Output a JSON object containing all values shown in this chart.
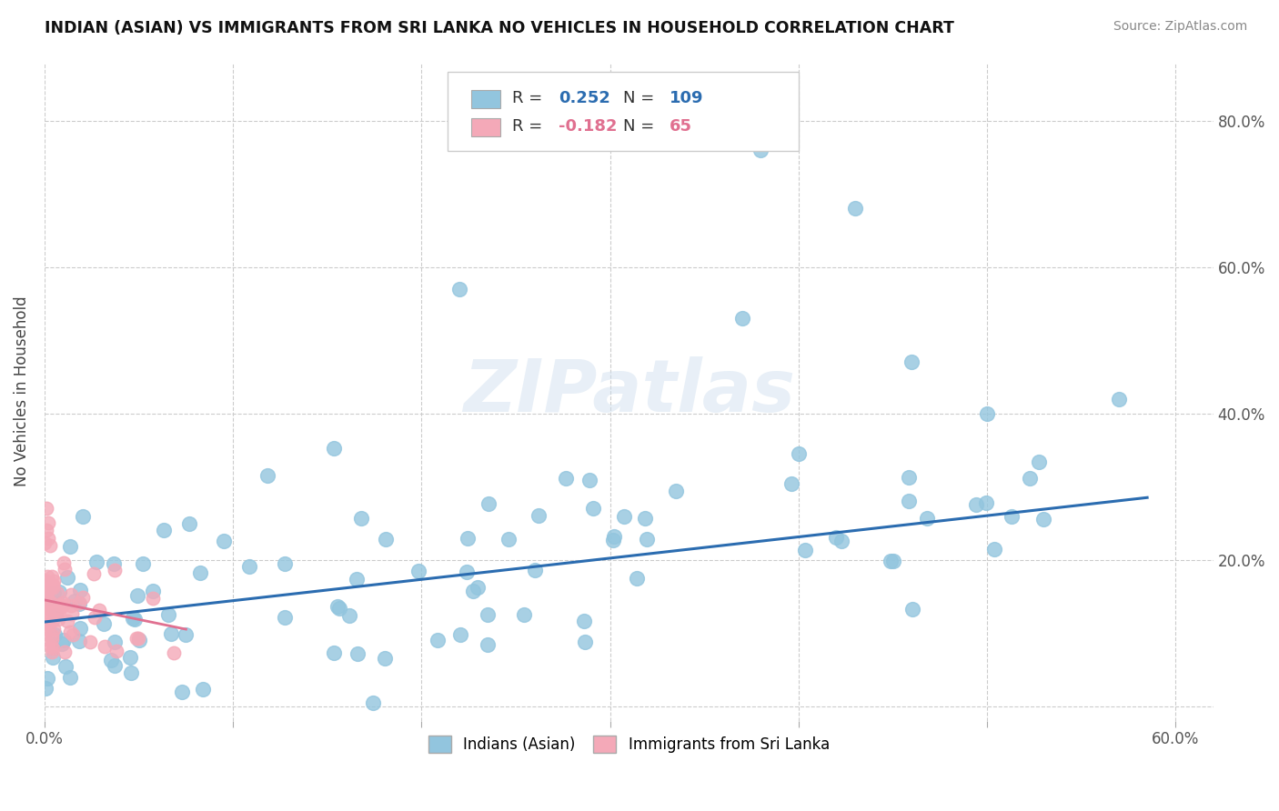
{
  "title": "INDIAN (ASIAN) VS IMMIGRANTS FROM SRI LANKA NO VEHICLES IN HOUSEHOLD CORRELATION CHART",
  "source": "Source: ZipAtlas.com",
  "ylabel": "No Vehicles in Household",
  "xlim": [
    0.0,
    0.62
  ],
  "ylim": [
    -0.02,
    0.88
  ],
  "xticks": [
    0.0,
    0.1,
    0.2,
    0.3,
    0.4,
    0.5,
    0.6
  ],
  "xtick_labels": [
    "0.0%",
    "",
    "",
    "",
    "",
    "",
    "60.0%"
  ],
  "yticks": [
    0.0,
    0.2,
    0.4,
    0.6,
    0.8
  ],
  "ytick_labels": [
    "",
    "20.0%",
    "40.0%",
    "60.0%",
    "80.0%"
  ],
  "blue_color": "#92C5DE",
  "pink_color": "#F4A9B8",
  "blue_R": 0.252,
  "blue_N": 109,
  "pink_R": -0.182,
  "pink_N": 65,
  "blue_line_color": "#2B6CB0",
  "pink_line_color": "#E07090",
  "watermark": "ZIPatlas",
  "background_color": "#FFFFFF",
  "grid_color": "#CCCCCC",
  "seed_blue": 7,
  "seed_pink": 13
}
